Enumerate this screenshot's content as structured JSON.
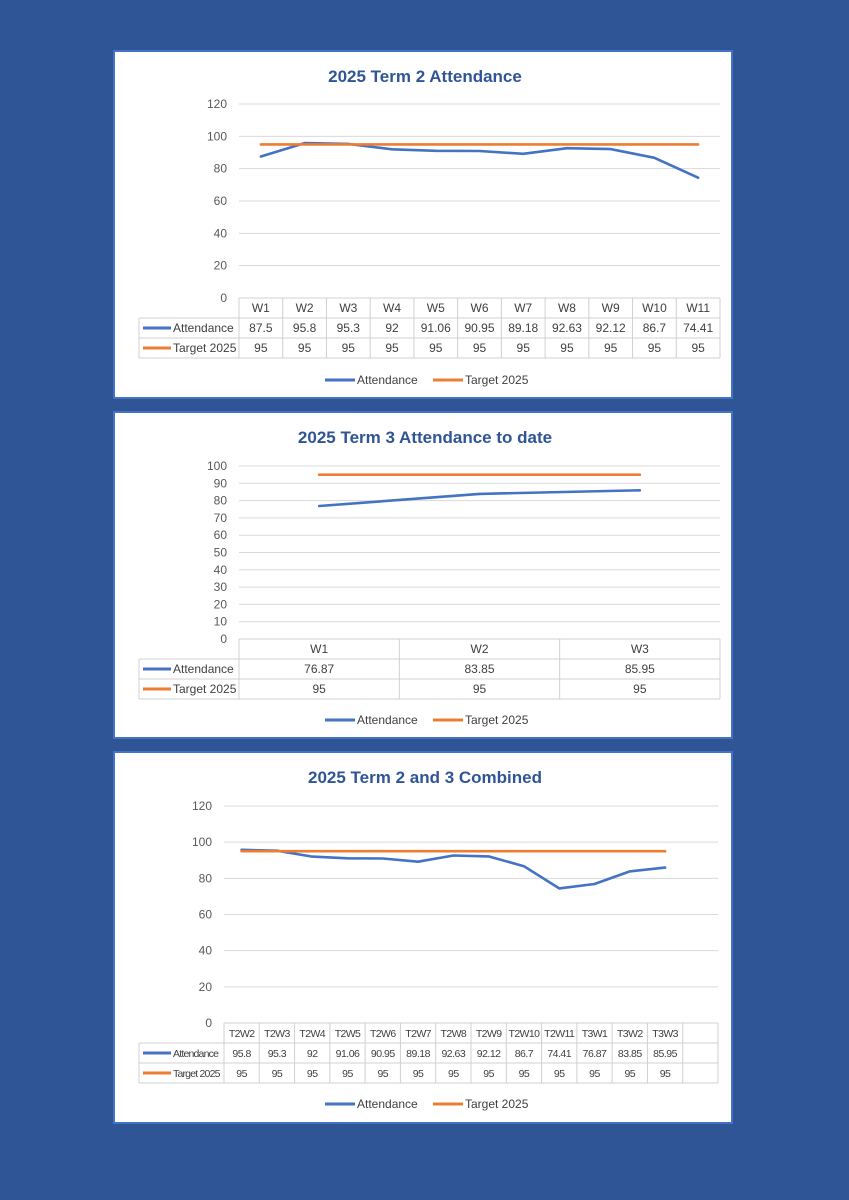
{
  "chart_data": [
    {
      "type": "line",
      "title": "2025 Term 2 Attendance",
      "categories": [
        "W1",
        "W2",
        "W3",
        "W4",
        "W5",
        "W6",
        "W7",
        "W8",
        "W9",
        "W10",
        "W11"
      ],
      "series": [
        {
          "name": "Attendance",
          "values": [
            87.5,
            95.8,
            95.3,
            92,
            91.06,
            90.95,
            89.18,
            92.63,
            92.12,
            86.7,
            74.41
          ],
          "labels": [
            "87.5",
            "95.8",
            "95.3",
            "92",
            "91.06",
            "90.95",
            "89.18",
            "92.63",
            "92.12",
            "86.7",
            "74.41"
          ]
        },
        {
          "name": "Target 2025",
          "values": [
            95,
            95,
            95,
            95,
            95,
            95,
            95,
            95,
            95,
            95,
            95
          ],
          "labels": [
            "95",
            "95",
            "95",
            "95",
            "95",
            "95",
            "95",
            "95",
            "95",
            "95",
            "95"
          ]
        }
      ],
      "yticks": [
        "0",
        "20",
        "40",
        "60",
        "80",
        "100",
        "120"
      ],
      "ylim": [
        0,
        120
      ],
      "grid": true,
      "data_table": true,
      "legend": "bottom",
      "colors": {
        "Attendance": "#4472c4",
        "Target 2025": "#ed7d31"
      }
    },
    {
      "type": "line",
      "title": "2025 Term 3 Attendance to date",
      "categories": [
        "W1",
        "W2",
        "W3"
      ],
      "series": [
        {
          "name": "Attendance",
          "values": [
            76.87,
            83.85,
            85.95
          ],
          "labels": [
            "76.87",
            "83.85",
            "85.95"
          ]
        },
        {
          "name": "Target 2025",
          "values": [
            95,
            95,
            95
          ],
          "labels": [
            "95",
            "95",
            "95"
          ]
        }
      ],
      "yticks": [
        "0",
        "10",
        "20",
        "30",
        "40",
        "50",
        "60",
        "70",
        "80",
        "90",
        "100"
      ],
      "ylim": [
        0,
        100
      ],
      "grid": true,
      "data_table": true,
      "legend": "bottom",
      "colors": {
        "Attendance": "#4472c4",
        "Target 2025": "#ed7d31"
      }
    },
    {
      "type": "line",
      "title": "2025 Term 2 and 3 Combined",
      "categories": [
        "T2W2",
        "T2W3",
        "T2W4",
        "T2W5",
        "T2W6",
        "T2W7",
        "T2W8",
        "T2W9",
        "T2W10",
        "T2W11",
        "T3W1",
        "T3W2",
        "T3W3",
        ""
      ],
      "series": [
        {
          "name": "Attendance",
          "values": [
            95.8,
            95.3,
            92,
            91.06,
            90.95,
            89.18,
            92.63,
            92.12,
            86.7,
            74.41,
            76.87,
            83.85,
            85.95,
            null
          ],
          "labels": [
            "95.8",
            "95.3",
            "92",
            "91.06",
            "90.95",
            "89.18",
            "92.63",
            "92.12",
            "86.7",
            "74.41",
            "76.87",
            "83.85",
            "85.95",
            ""
          ]
        },
        {
          "name": "Target 2025",
          "values": [
            95,
            95,
            95,
            95,
            95,
            95,
            95,
            95,
            95,
            95,
            95,
            95,
            95,
            null
          ],
          "labels": [
            "95",
            "95",
            "95",
            "95",
            "95",
            "95",
            "95",
            "95",
            "95",
            "95",
            "95",
            "95",
            "95",
            ""
          ]
        }
      ],
      "yticks": [
        "0",
        "20",
        "40",
        "60",
        "80",
        "100",
        "120"
      ],
      "ylim": [
        0,
        120
      ],
      "grid": true,
      "data_table": true,
      "legend": "bottom",
      "colors": {
        "Attendance": "#4472c4",
        "Target 2025": "#ed7d31"
      }
    }
  ]
}
